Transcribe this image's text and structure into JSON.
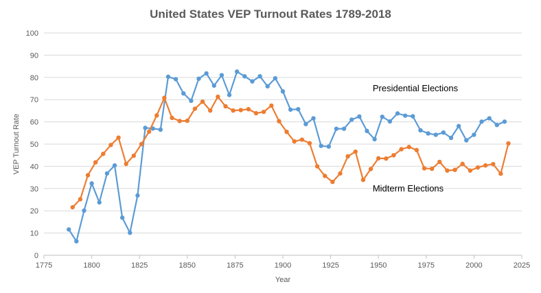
{
  "chart_data": {
    "type": "line",
    "title": "United States VEP Turnout Rates 1789-2018",
    "xlabel": "Year",
    "ylabel": "VEP Turnout Rate",
    "xlim": [
      1775,
      2025
    ],
    "ylim": [
      0,
      100
    ],
    "xticks": [
      1775,
      1800,
      1825,
      1850,
      1875,
      1900,
      1925,
      1950,
      1975,
      2000,
      2025
    ],
    "yticks": [
      0,
      10,
      20,
      30,
      40,
      50,
      60,
      70,
      80,
      90,
      100
    ],
    "grid": true,
    "annotations": [
      {
        "text": "Presidential Elections",
        "x": 1947,
        "y": 75
      },
      {
        "text": "Midterm Elections",
        "x": 1947,
        "y": 30
      }
    ],
    "series": [
      {
        "name": "Presidential Elections",
        "color": "#5b9bd5",
        "points": [
          [
            1788,
            11.6
          ],
          [
            1792,
            6.3
          ],
          [
            1796,
            20.1
          ],
          [
            1800,
            32.3
          ],
          [
            1804,
            23.8
          ],
          [
            1808,
            36.8
          ],
          [
            1812,
            40.4
          ],
          [
            1816,
            16.9
          ],
          [
            1820,
            10.1
          ],
          [
            1824,
            26.9
          ],
          [
            1828,
            57.3
          ],
          [
            1832,
            57.0
          ],
          [
            1836,
            56.5
          ],
          [
            1840,
            80.3
          ],
          [
            1844,
            79.2
          ],
          [
            1848,
            72.8
          ],
          [
            1852,
            69.5
          ],
          [
            1856,
            79.4
          ],
          [
            1860,
            81.8
          ],
          [
            1864,
            76.3
          ],
          [
            1868,
            81.0
          ],
          [
            1872,
            72.1
          ],
          [
            1876,
            82.6
          ],
          [
            1880,
            80.5
          ],
          [
            1884,
            78.2
          ],
          [
            1888,
            80.5
          ],
          [
            1892,
            76.0
          ],
          [
            1896,
            79.6
          ],
          [
            1900,
            73.7
          ],
          [
            1904,
            65.5
          ],
          [
            1908,
            65.7
          ],
          [
            1912,
            59.0
          ],
          [
            1916,
            61.6
          ],
          [
            1920,
            49.2
          ],
          [
            1924,
            48.9
          ],
          [
            1928,
            56.9
          ],
          [
            1932,
            56.9
          ],
          [
            1936,
            61.0
          ],
          [
            1940,
            62.4
          ],
          [
            1944,
            55.9
          ],
          [
            1948,
            52.2
          ],
          [
            1952,
            62.3
          ],
          [
            1956,
            60.2
          ],
          [
            1960,
            63.8
          ],
          [
            1964,
            62.8
          ],
          [
            1968,
            62.5
          ],
          [
            1972,
            56.2
          ],
          [
            1976,
            54.8
          ],
          [
            1980,
            54.2
          ],
          [
            1984,
            55.2
          ],
          [
            1988,
            52.8
          ],
          [
            1992,
            58.1
          ],
          [
            1996,
            51.7
          ],
          [
            2000,
            54.2
          ],
          [
            2004,
            60.1
          ],
          [
            2008,
            61.6
          ],
          [
            2012,
            58.6
          ],
          [
            2016,
            60.1
          ]
        ]
      },
      {
        "name": "Midterm Elections",
        "color": "#ed7d31",
        "points": [
          [
            1790,
            21.6
          ],
          [
            1794,
            25.2
          ],
          [
            1798,
            36.0
          ],
          [
            1802,
            41.8
          ],
          [
            1806,
            45.6
          ],
          [
            1810,
            49.6
          ],
          [
            1814,
            52.9
          ],
          [
            1818,
            41.1
          ],
          [
            1822,
            44.8
          ],
          [
            1826,
            50.0
          ],
          [
            1830,
            55.6
          ],
          [
            1834,
            62.9
          ],
          [
            1838,
            70.8
          ],
          [
            1842,
            61.8
          ],
          [
            1846,
            60.4
          ],
          [
            1850,
            60.5
          ],
          [
            1854,
            65.9
          ],
          [
            1858,
            69.1
          ],
          [
            1862,
            65.1
          ],
          [
            1866,
            71.3
          ],
          [
            1870,
            67.0
          ],
          [
            1874,
            65.1
          ],
          [
            1878,
            65.3
          ],
          [
            1882,
            65.7
          ],
          [
            1886,
            63.9
          ],
          [
            1890,
            64.5
          ],
          [
            1894,
            67.3
          ],
          [
            1898,
            60.3
          ],
          [
            1902,
            55.5
          ],
          [
            1906,
            51.2
          ],
          [
            1910,
            52.0
          ],
          [
            1914,
            50.4
          ],
          [
            1918,
            40.0
          ],
          [
            1922,
            35.7
          ],
          [
            1926,
            33.0
          ],
          [
            1930,
            36.8
          ],
          [
            1934,
            44.5
          ],
          [
            1938,
            46.6
          ],
          [
            1942,
            33.9
          ],
          [
            1946,
            38.8
          ],
          [
            1950,
            43.6
          ],
          [
            1954,
            43.5
          ],
          [
            1958,
            45.0
          ],
          [
            1962,
            47.7
          ],
          [
            1966,
            48.7
          ],
          [
            1970,
            47.3
          ],
          [
            1974,
            39.1
          ],
          [
            1978,
            38.9
          ],
          [
            1982,
            42.0
          ],
          [
            1986,
            38.1
          ],
          [
            1990,
            38.4
          ],
          [
            1994,
            41.1
          ],
          [
            1998,
            38.1
          ],
          [
            2002,
            39.5
          ],
          [
            2006,
            40.4
          ],
          [
            2010,
            41.0
          ],
          [
            2014,
            36.7
          ],
          [
            2018,
            50.3
          ]
        ]
      }
    ]
  }
}
